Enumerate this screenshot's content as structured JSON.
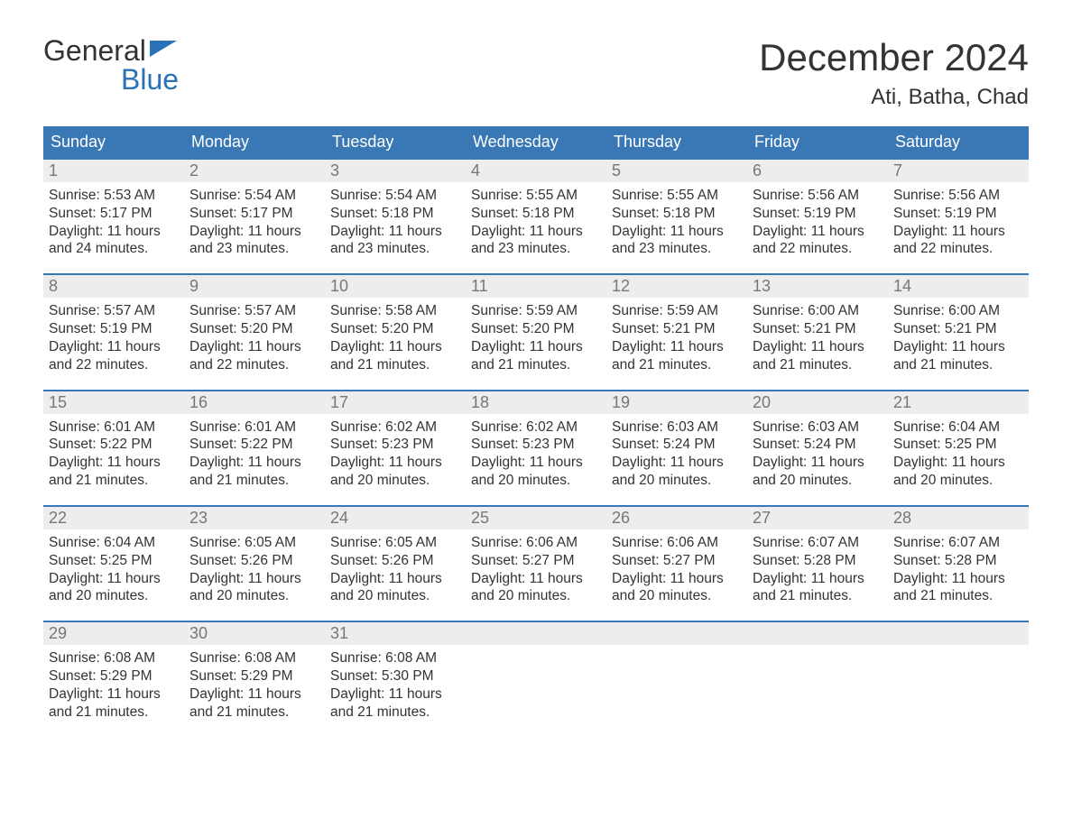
{
  "logo": {
    "line1": "General",
    "line2": "Blue"
  },
  "title": "December 2024",
  "subtitle": "Ati, Batha, Chad",
  "colors": {
    "accent": "#3a78b5",
    "header_bg": "#3a78b5",
    "header_text": "#ffffff",
    "daynum_bg": "#ededed",
    "daynum_text": "#777777",
    "body_text": "#333333",
    "logo_blue": "#2a71b8",
    "background": "#ffffff"
  },
  "typography": {
    "title_fontsize": 42,
    "subtitle_fontsize": 24,
    "header_fontsize": 18,
    "daynum_fontsize": 18,
    "body_fontsize": 15.5,
    "logo_fontsize": 32,
    "font_family": "Arial"
  },
  "weekdays": [
    "Sunday",
    "Monday",
    "Tuesday",
    "Wednesday",
    "Thursday",
    "Friday",
    "Saturday"
  ],
  "weeks": [
    [
      {
        "n": "1",
        "sunrise": "Sunrise: 5:53 AM",
        "sunset": "Sunset: 5:17 PM",
        "dl1": "Daylight: 11 hours",
        "dl2": "and 24 minutes."
      },
      {
        "n": "2",
        "sunrise": "Sunrise: 5:54 AM",
        "sunset": "Sunset: 5:17 PM",
        "dl1": "Daylight: 11 hours",
        "dl2": "and 23 minutes."
      },
      {
        "n": "3",
        "sunrise": "Sunrise: 5:54 AM",
        "sunset": "Sunset: 5:18 PM",
        "dl1": "Daylight: 11 hours",
        "dl2": "and 23 minutes."
      },
      {
        "n": "4",
        "sunrise": "Sunrise: 5:55 AM",
        "sunset": "Sunset: 5:18 PM",
        "dl1": "Daylight: 11 hours",
        "dl2": "and 23 minutes."
      },
      {
        "n": "5",
        "sunrise": "Sunrise: 5:55 AM",
        "sunset": "Sunset: 5:18 PM",
        "dl1": "Daylight: 11 hours",
        "dl2": "and 23 minutes."
      },
      {
        "n": "6",
        "sunrise": "Sunrise: 5:56 AM",
        "sunset": "Sunset: 5:19 PM",
        "dl1": "Daylight: 11 hours",
        "dl2": "and 22 minutes."
      },
      {
        "n": "7",
        "sunrise": "Sunrise: 5:56 AM",
        "sunset": "Sunset: 5:19 PM",
        "dl1": "Daylight: 11 hours",
        "dl2": "and 22 minutes."
      }
    ],
    [
      {
        "n": "8",
        "sunrise": "Sunrise: 5:57 AM",
        "sunset": "Sunset: 5:19 PM",
        "dl1": "Daylight: 11 hours",
        "dl2": "and 22 minutes."
      },
      {
        "n": "9",
        "sunrise": "Sunrise: 5:57 AM",
        "sunset": "Sunset: 5:20 PM",
        "dl1": "Daylight: 11 hours",
        "dl2": "and 22 minutes."
      },
      {
        "n": "10",
        "sunrise": "Sunrise: 5:58 AM",
        "sunset": "Sunset: 5:20 PM",
        "dl1": "Daylight: 11 hours",
        "dl2": "and 21 minutes."
      },
      {
        "n": "11",
        "sunrise": "Sunrise: 5:59 AM",
        "sunset": "Sunset: 5:20 PM",
        "dl1": "Daylight: 11 hours",
        "dl2": "and 21 minutes."
      },
      {
        "n": "12",
        "sunrise": "Sunrise: 5:59 AM",
        "sunset": "Sunset: 5:21 PM",
        "dl1": "Daylight: 11 hours",
        "dl2": "and 21 minutes."
      },
      {
        "n": "13",
        "sunrise": "Sunrise: 6:00 AM",
        "sunset": "Sunset: 5:21 PM",
        "dl1": "Daylight: 11 hours",
        "dl2": "and 21 minutes."
      },
      {
        "n": "14",
        "sunrise": "Sunrise: 6:00 AM",
        "sunset": "Sunset: 5:21 PM",
        "dl1": "Daylight: 11 hours",
        "dl2": "and 21 minutes."
      }
    ],
    [
      {
        "n": "15",
        "sunrise": "Sunrise: 6:01 AM",
        "sunset": "Sunset: 5:22 PM",
        "dl1": "Daylight: 11 hours",
        "dl2": "and 21 minutes."
      },
      {
        "n": "16",
        "sunrise": "Sunrise: 6:01 AM",
        "sunset": "Sunset: 5:22 PM",
        "dl1": "Daylight: 11 hours",
        "dl2": "and 21 minutes."
      },
      {
        "n": "17",
        "sunrise": "Sunrise: 6:02 AM",
        "sunset": "Sunset: 5:23 PM",
        "dl1": "Daylight: 11 hours",
        "dl2": "and 20 minutes."
      },
      {
        "n": "18",
        "sunrise": "Sunrise: 6:02 AM",
        "sunset": "Sunset: 5:23 PM",
        "dl1": "Daylight: 11 hours",
        "dl2": "and 20 minutes."
      },
      {
        "n": "19",
        "sunrise": "Sunrise: 6:03 AM",
        "sunset": "Sunset: 5:24 PM",
        "dl1": "Daylight: 11 hours",
        "dl2": "and 20 minutes."
      },
      {
        "n": "20",
        "sunrise": "Sunrise: 6:03 AM",
        "sunset": "Sunset: 5:24 PM",
        "dl1": "Daylight: 11 hours",
        "dl2": "and 20 minutes."
      },
      {
        "n": "21",
        "sunrise": "Sunrise: 6:04 AM",
        "sunset": "Sunset: 5:25 PM",
        "dl1": "Daylight: 11 hours",
        "dl2": "and 20 minutes."
      }
    ],
    [
      {
        "n": "22",
        "sunrise": "Sunrise: 6:04 AM",
        "sunset": "Sunset: 5:25 PM",
        "dl1": "Daylight: 11 hours",
        "dl2": "and 20 minutes."
      },
      {
        "n": "23",
        "sunrise": "Sunrise: 6:05 AM",
        "sunset": "Sunset: 5:26 PM",
        "dl1": "Daylight: 11 hours",
        "dl2": "and 20 minutes."
      },
      {
        "n": "24",
        "sunrise": "Sunrise: 6:05 AM",
        "sunset": "Sunset: 5:26 PM",
        "dl1": "Daylight: 11 hours",
        "dl2": "and 20 minutes."
      },
      {
        "n": "25",
        "sunrise": "Sunrise: 6:06 AM",
        "sunset": "Sunset: 5:27 PM",
        "dl1": "Daylight: 11 hours",
        "dl2": "and 20 minutes."
      },
      {
        "n": "26",
        "sunrise": "Sunrise: 6:06 AM",
        "sunset": "Sunset: 5:27 PM",
        "dl1": "Daylight: 11 hours",
        "dl2": "and 20 minutes."
      },
      {
        "n": "27",
        "sunrise": "Sunrise: 6:07 AM",
        "sunset": "Sunset: 5:28 PM",
        "dl1": "Daylight: 11 hours",
        "dl2": "and 21 minutes."
      },
      {
        "n": "28",
        "sunrise": "Sunrise: 6:07 AM",
        "sunset": "Sunset: 5:28 PM",
        "dl1": "Daylight: 11 hours",
        "dl2": "and 21 minutes."
      }
    ],
    [
      {
        "n": "29",
        "sunrise": "Sunrise: 6:08 AM",
        "sunset": "Sunset: 5:29 PM",
        "dl1": "Daylight: 11 hours",
        "dl2": "and 21 minutes."
      },
      {
        "n": "30",
        "sunrise": "Sunrise: 6:08 AM",
        "sunset": "Sunset: 5:29 PM",
        "dl1": "Daylight: 11 hours",
        "dl2": "and 21 minutes."
      },
      {
        "n": "31",
        "sunrise": "Sunrise: 6:08 AM",
        "sunset": "Sunset: 5:30 PM",
        "dl1": "Daylight: 11 hours",
        "dl2": "and 21 minutes."
      },
      null,
      null,
      null,
      null
    ]
  ]
}
